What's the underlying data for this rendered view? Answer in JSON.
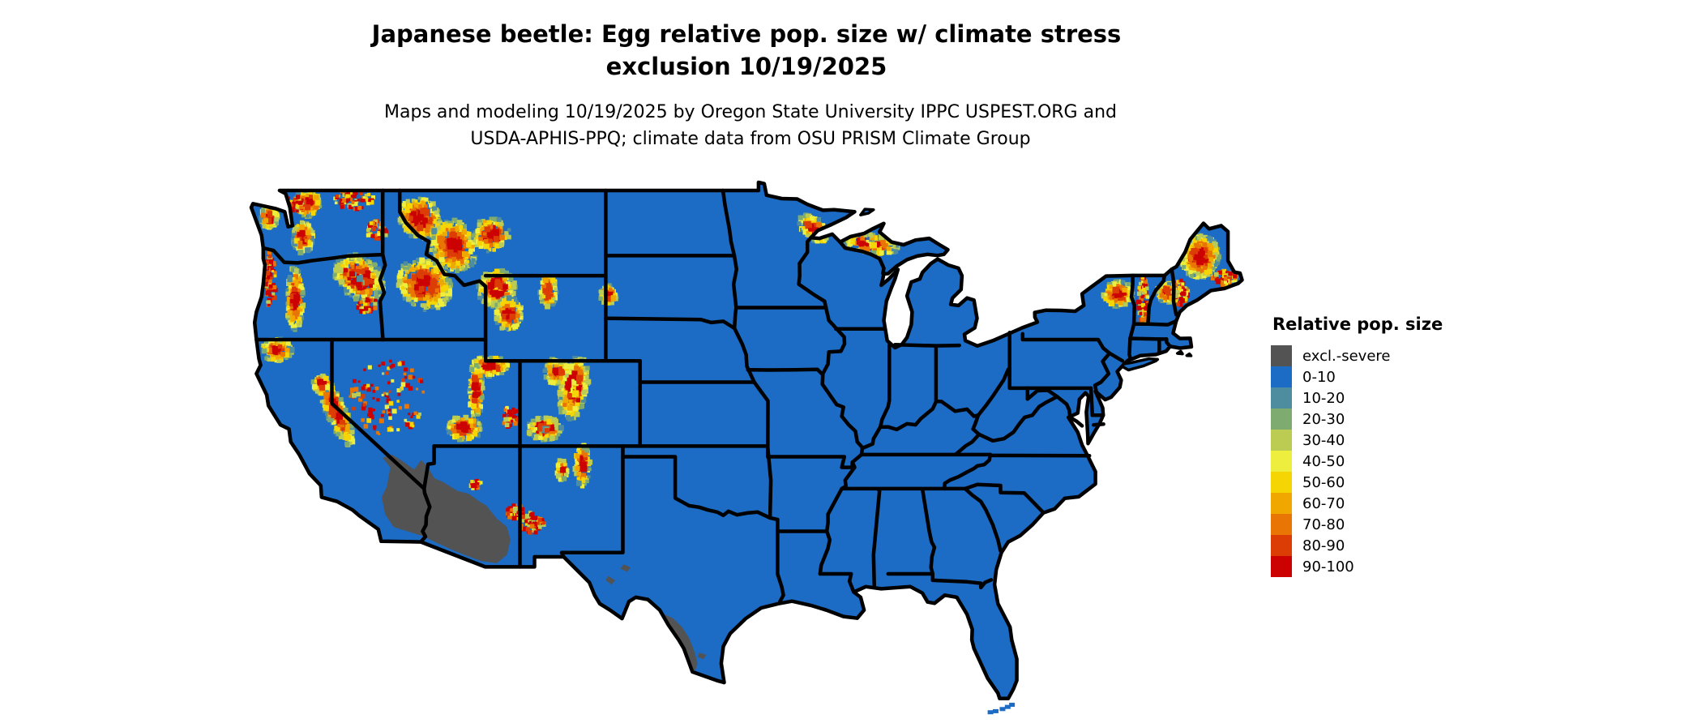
{
  "title": {
    "line1": "Japanese beetle: Egg relative pop. size w/ climate stress",
    "line2": "exclusion 10/19/2025"
  },
  "subtitle": {
    "line1": "Maps and modeling 10/19/2025 by Oregon State University IPPC USPEST.ORG and",
    "line2": "USDA-APHIS-PPQ; climate data from OSU PRISM Climate Group"
  },
  "legend": {
    "title": "Relative pop. size",
    "items": [
      {
        "label": "excl.-severe",
        "color": "#535353"
      },
      {
        "label": "0-10",
        "color": "#1C6BC4"
      },
      {
        "label": "10-20",
        "color": "#4E8CA0"
      },
      {
        "label": "20-30",
        "color": "#7EAC70"
      },
      {
        "label": "30-40",
        "color": "#BCCB52"
      },
      {
        "label": "40-50",
        "color": "#EDEE3D"
      },
      {
        "label": "50-60",
        "color": "#F6D504"
      },
      {
        "label": "60-70",
        "color": "#F0A800"
      },
      {
        "label": "70-80",
        "color": "#E87504"
      },
      {
        "label": "80-90",
        "color": "#DC3D05"
      },
      {
        "label": "90-100",
        "color": "#CC0202"
      }
    ]
  },
  "map": {
    "region": "Contiguous United States",
    "land_color": "#1C6BC4",
    "excluded_color": "#535353",
    "border_color": "#000000",
    "background_color": "#FFFFFF"
  }
}
